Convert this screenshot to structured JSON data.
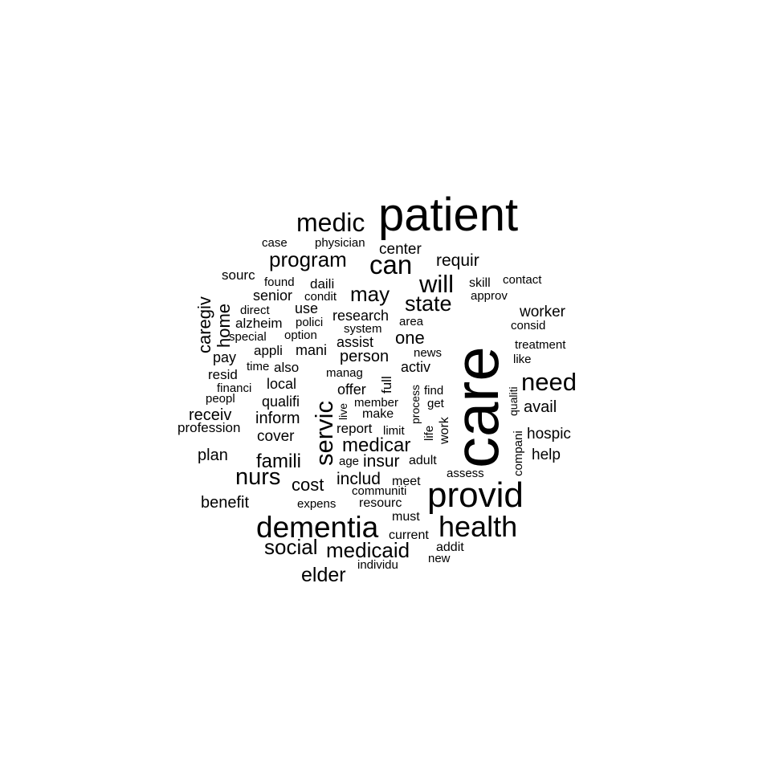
{
  "words": [
    "patient",
    "care",
    "provid",
    "dementia",
    "health",
    "medic",
    "can",
    "will",
    "state",
    "servic",
    "need",
    "nurs",
    "medicaid",
    "social",
    "elder",
    "program",
    "may",
    "medicar",
    "famili",
    "cost",
    "caregiv",
    "home",
    "one",
    "includ",
    "insur",
    "requir",
    "center",
    "person",
    "research",
    "hospic",
    "avail",
    "worker",
    "help",
    "benefit",
    "plan",
    "receiv",
    "inform",
    "cover",
    "local",
    "qualifi",
    "senior",
    "use",
    "daili",
    "mani",
    "appli",
    "offer",
    "assist",
    "activ",
    "also",
    "pay",
    "resid",
    "profession",
    "report",
    "make",
    "member",
    "live",
    "full",
    "process",
    "find",
    "get",
    "work",
    "life",
    "limit",
    "age",
    "adult",
    "meet",
    "communiti",
    "resourc",
    "expens",
    "must",
    "current",
    "addit",
    "new",
    "individu",
    "assess",
    "compani",
    "qualiti",
    "treatment",
    "like",
    "consid",
    "approv",
    "skill",
    "contact",
    "news",
    "area",
    "system",
    "option",
    "polici",
    "alzheim",
    "special",
    "direct",
    "condit",
    "found",
    "sourc",
    "case",
    "physician",
    "time",
    "financi",
    "peopl",
    "manag"
  ]
}
